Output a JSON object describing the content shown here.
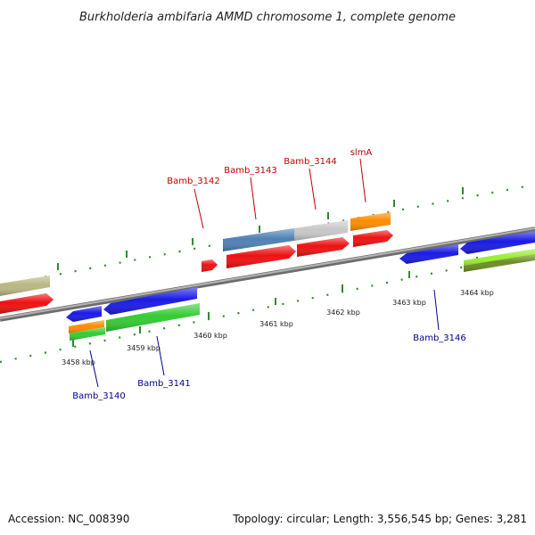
{
  "title": "Burkholderia ambifaria AMMD chromosome 1, complete genome",
  "footer": {
    "accession": "Accession: NC_008390",
    "summary": "Topology: circular; Length: 3,556,545 bp; Genes: 3,281"
  },
  "colors": {
    "backbone": "#8a8a8a",
    "tick": "#2e8b2e",
    "forward_label": "#c00000",
    "reverse_label": "#00008b",
    "red": "#ee1111",
    "blue": "#1a1ae6",
    "green": "#33cc33",
    "orange": "#ff8c00",
    "steelblue": "#4f81b5",
    "lightgray": "#c8c8c8",
    "khaki": "#b8b884",
    "lime": "#99ee33",
    "olive": "#6b8e23"
  },
  "axis_labels": [
    {
      "text": "3458 kbp"
    },
    {
      "text": "3459 kbp"
    },
    {
      "text": "3460 kbp"
    },
    {
      "text": "3461 kbp"
    },
    {
      "text": "3462 kbp"
    },
    {
      "text": "3463 kbp"
    },
    {
      "text": "3464 kbp"
    }
  ],
  "forward_gene_labels": [
    "Bamb_3142",
    "Bamb_3143",
    "Bamb_3144",
    "slmA"
  ],
  "reverse_gene_labels": [
    "Bamb_3140",
    "Bamb_3141",
    "Bamb_3146"
  ]
}
